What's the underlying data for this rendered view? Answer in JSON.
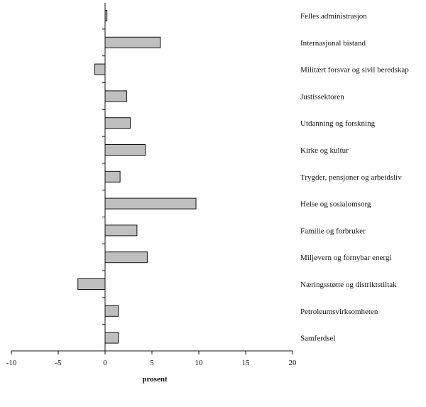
{
  "chart_data": {
    "type": "bar",
    "orientation": "horizontal",
    "categories": [
      "Felles administrasjon",
      "Internasjonal bistand",
      "Militært forsvar og sivil beredskap",
      "Justissektoren",
      "Utdanning og forskning",
      "Kirke og kultur",
      "Trygder, pensjoner og arbeidsliv",
      "Helse og sosialomsorg",
      "Familie og forbruker",
      "Miljøvern og fornybar energi",
      "Næringsstøtte og distriktstiltak",
      "Petroleumsvirksomheten",
      "Samferdsel"
    ],
    "values": [
      0.2,
      5.9,
      -1.1,
      2.3,
      2.7,
      4.3,
      1.6,
      9.7,
      3.4,
      4.5,
      -2.9,
      1.4,
      1.4
    ],
    "xlabel": "prosent",
    "xlim": [
      -10,
      20
    ],
    "xticks": [
      -10,
      -5,
      0,
      5,
      10,
      15,
      20
    ],
    "xtick_labels": [
      "-10",
      "-5",
      "0",
      "5",
      "10",
      "15",
      "20"
    ],
    "colors": {
      "bar_fill": "#bfbfbf",
      "bar_stroke": "#111111"
    }
  }
}
